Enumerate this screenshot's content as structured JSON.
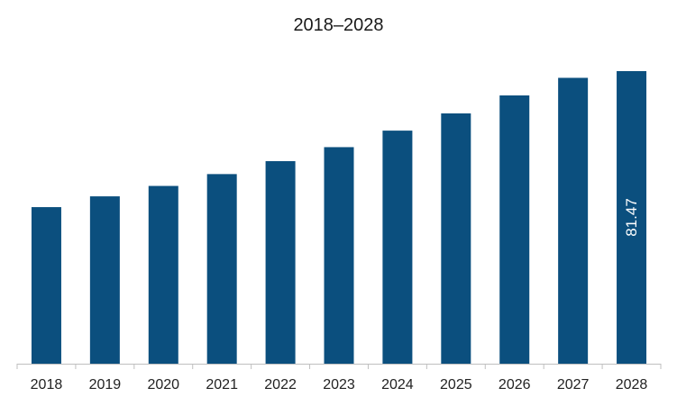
{
  "chart_data": {
    "type": "bar",
    "title": "2018–2028",
    "xlabel": "",
    "ylabel": "",
    "categories": [
      "2018",
      "2019",
      "2020",
      "2021",
      "2022",
      "2023",
      "2024",
      "2025",
      "2026",
      "2027",
      "2028"
    ],
    "values": [
      43.6,
      46.6,
      49.5,
      52.8,
      56.4,
      60.3,
      64.9,
      69.7,
      74.7,
      79.6,
      81.47
    ],
    "data_labels": [
      {
        "category": "2028",
        "text": "81.47",
        "orientation": "vertical",
        "position": "inside-center"
      }
    ],
    "ylim": [
      0,
      92
    ],
    "grid": false,
    "legend": "none",
    "colors": {
      "bar": "#0b4f7e",
      "axis": "#bfbfbf",
      "text": "#222222"
    }
  }
}
